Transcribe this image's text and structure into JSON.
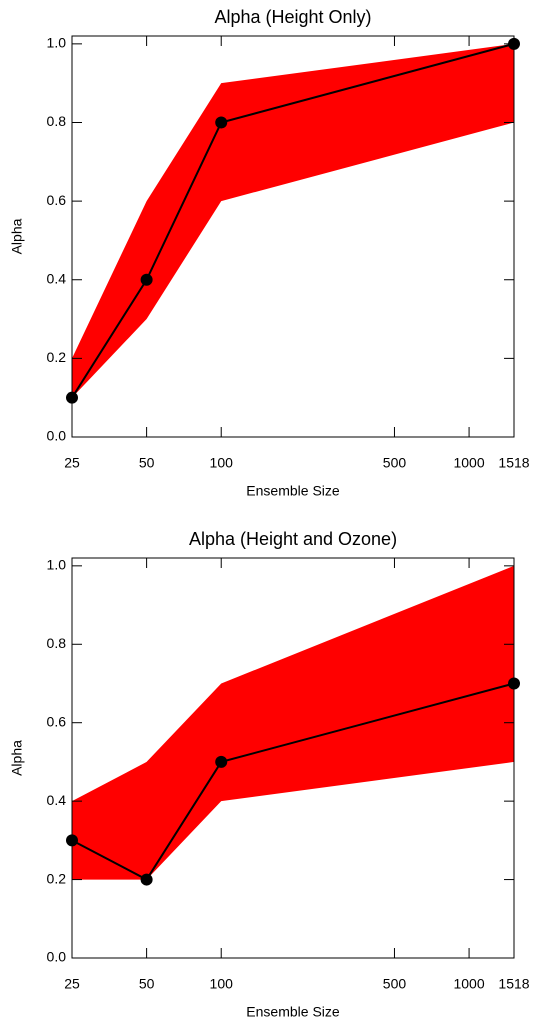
{
  "chart_data": [
    {
      "type": "line",
      "title": "Alpha (Height Only)",
      "xlabel": "Ensemble Size",
      "ylabel": "Alpha",
      "x": [
        25,
        50,
        100,
        1518
      ],
      "values": [
        0.1,
        0.4,
        0.8,
        1.0
      ],
      "lower": [
        0.1,
        0.3,
        0.6,
        0.8
      ],
      "upper": [
        0.2,
        0.6,
        0.9,
        1.0
      ],
      "color": "#000000",
      "band_color": "#ff0000",
      "xscale": "log",
      "xlim": [
        25,
        1518
      ],
      "xticks": [
        25,
        50,
        100,
        500,
        1000,
        1518
      ],
      "ylim": [
        0,
        1.02
      ],
      "yticks": [
        {
          "value": 0,
          "label": "0.0"
        },
        0.2,
        0.4,
        0.6,
        0.8,
        {
          "value": 1,
          "label": "1.0"
        }
      ]
    },
    {
      "type": "line",
      "title": "Alpha (Height and Ozone)",
      "xlabel": "Ensemble Size",
      "ylabel": "Alpha",
      "x": [
        25,
        50,
        100,
        1518
      ],
      "values": [
        0.3,
        0.2,
        0.5,
        0.7
      ],
      "lower": [
        0.2,
        0.2,
        0.4,
        0.5
      ],
      "upper": [
        0.4,
        0.5,
        0.7,
        1.0
      ],
      "color": "#000000",
      "band_color": "#ff0000",
      "xscale": "log",
      "xlim": [
        25,
        1518
      ],
      "xticks": [
        25,
        50,
        100,
        500,
        1000,
        1518
      ],
      "ylim": [
        0,
        1.02
      ],
      "yticks": [
        {
          "value": 0,
          "label": "0.0"
        },
        0.2,
        0.4,
        0.6,
        0.8,
        {
          "value": 1,
          "label": "1.0"
        }
      ]
    }
  ]
}
